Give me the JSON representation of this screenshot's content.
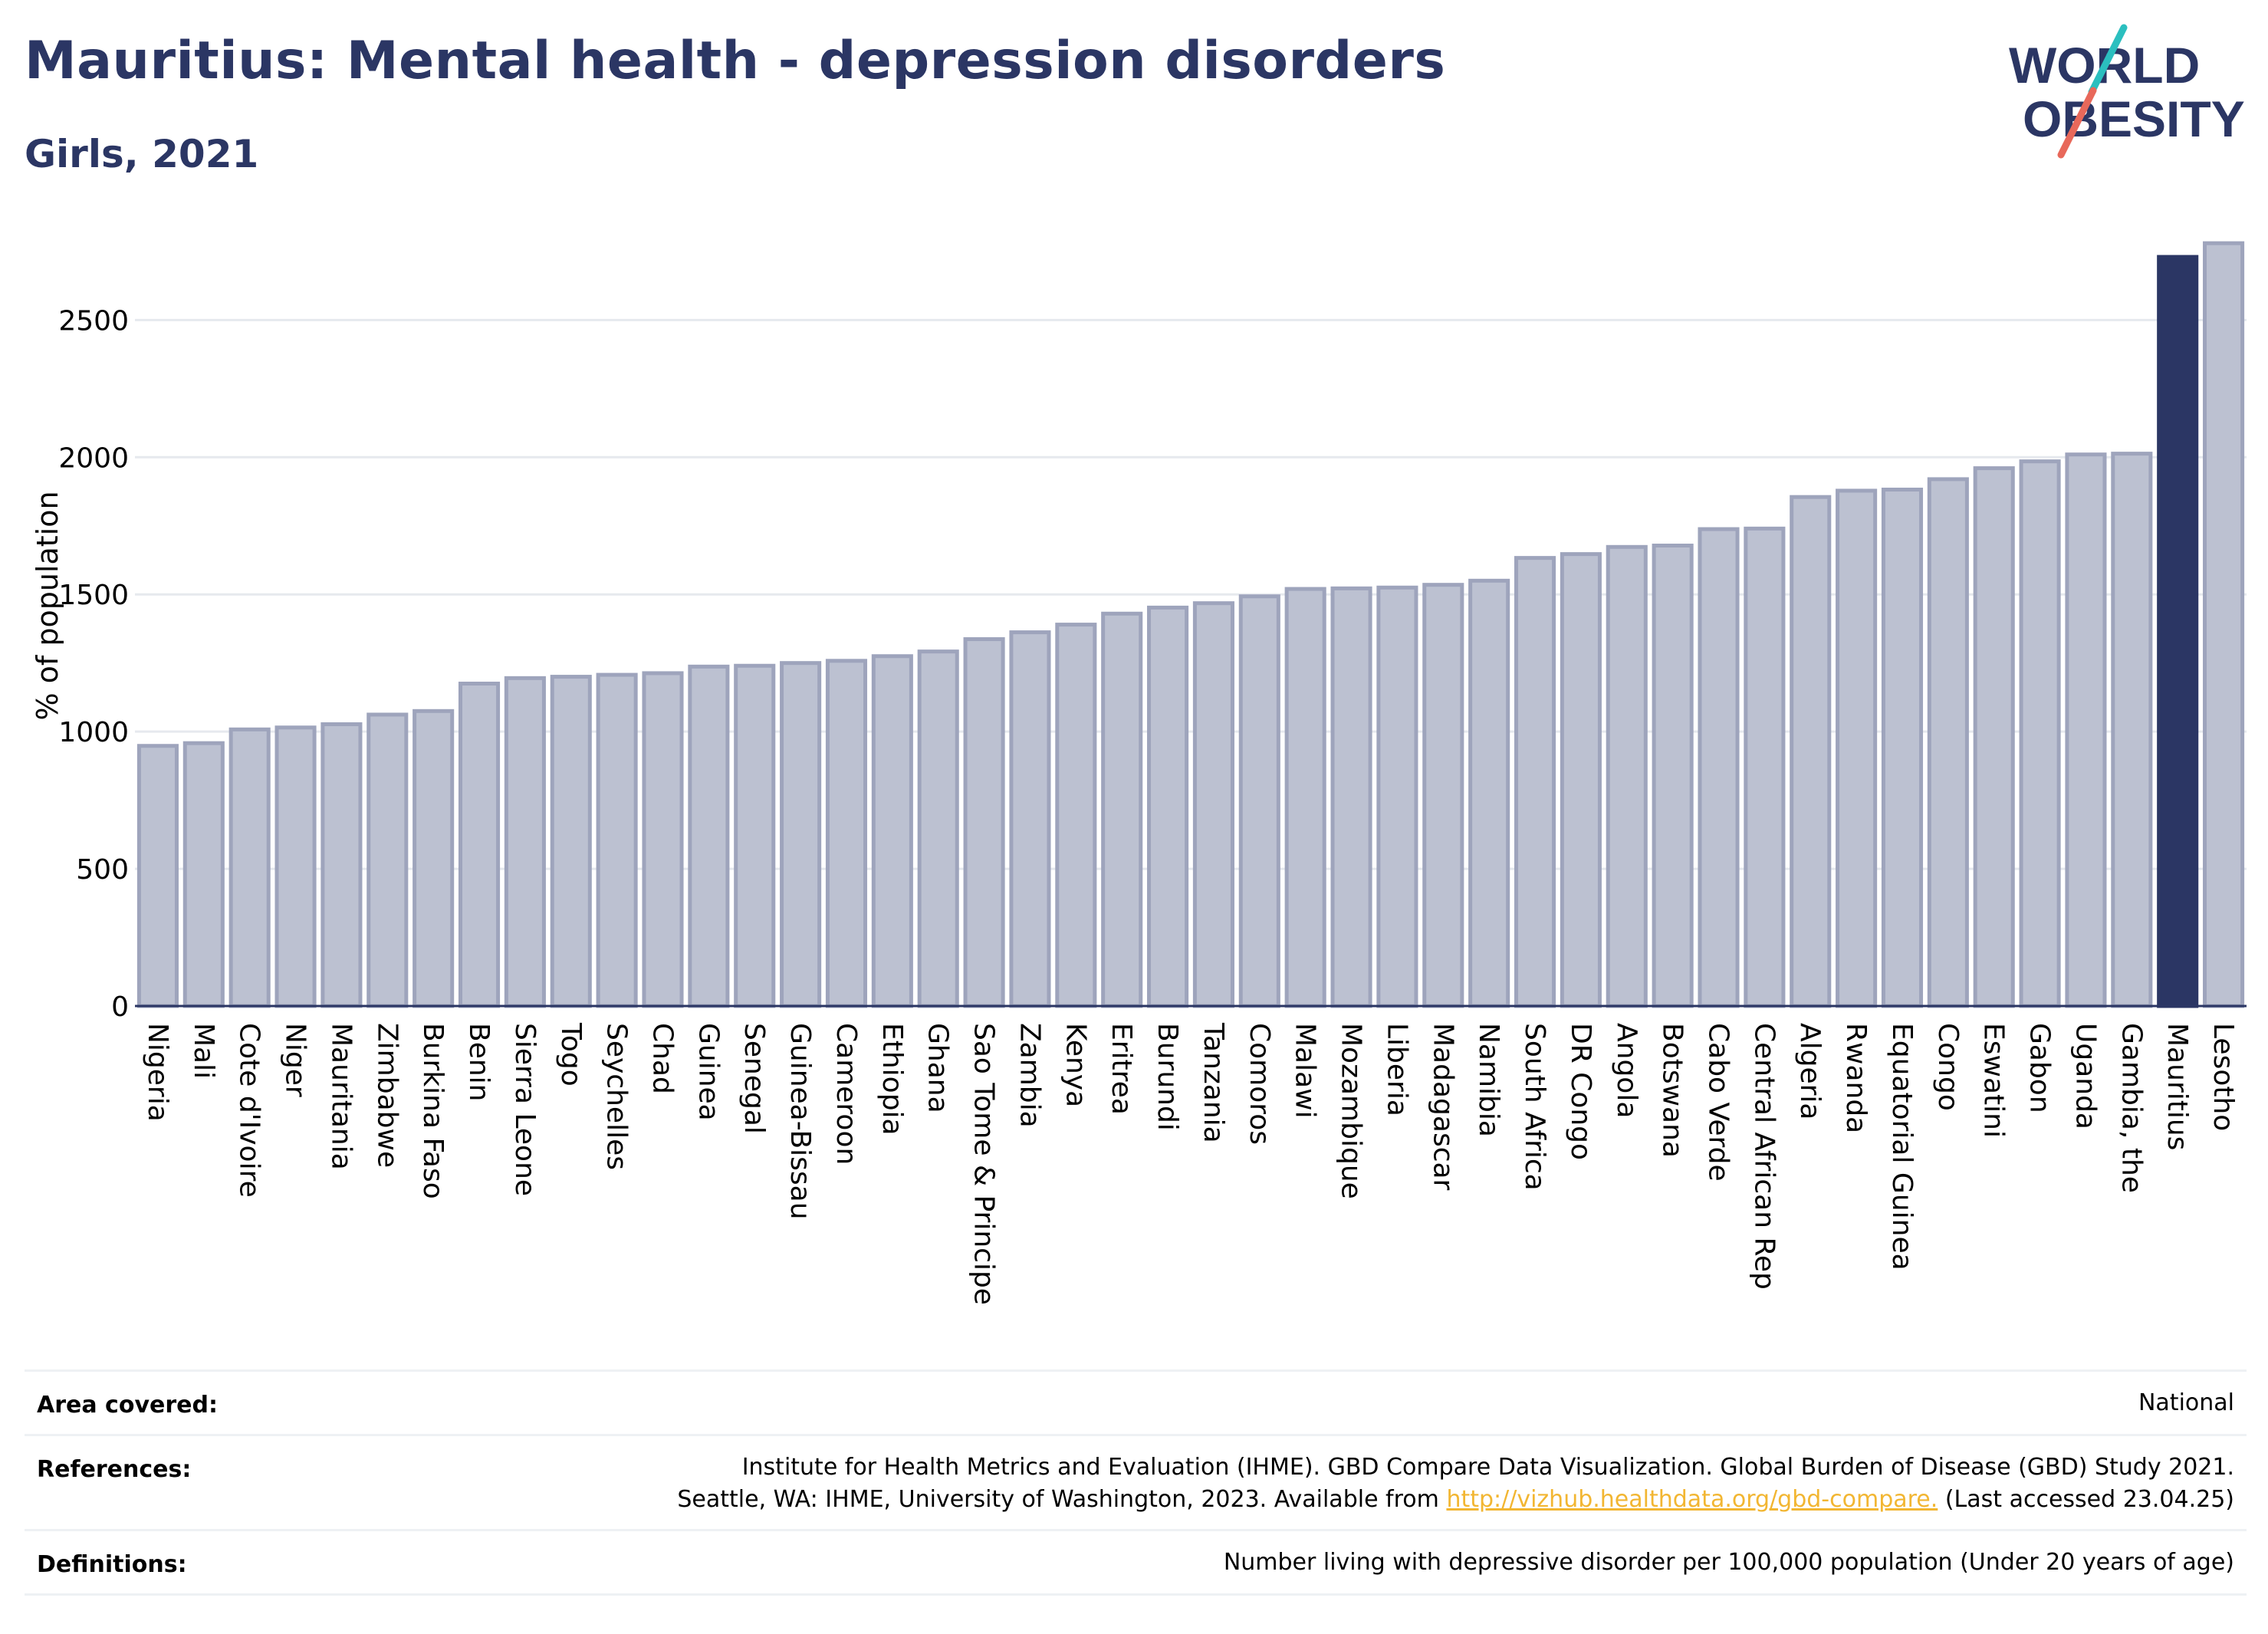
{
  "header": {
    "title": "Mauritius: Mental health - depression disorders",
    "subtitle": "Girls, 2021",
    "logo_text_line1": "WORLD",
    "logo_text_line2": "OBESITY"
  },
  "colors": {
    "title": "#2b3664",
    "bar_default": "#bcc1d1",
    "bar_default_stroke": "#9ea4bc",
    "bar_highlight": "#2b3664",
    "grid": "#e6e9ee",
    "axis": "#2b3664",
    "link": "#f2b632",
    "logo_teal": "#2bbfbf",
    "logo_red": "#e8685a"
  },
  "chart_data": {
    "type": "bar",
    "ylabel": "% of population",
    "xlabel": "",
    "ylim": [
      0,
      2800
    ],
    "yticks": [
      0,
      500,
      1000,
      1500,
      2000,
      2500
    ],
    "highlight": "Mauritius",
    "grid": "horizontal",
    "categories": [
      "Nigeria",
      "Mali",
      "Cote d'Ivoire",
      "Niger",
      "Mauritania",
      "Zimbabwe",
      "Burkina Faso",
      "Benin",
      "Sierra Leone",
      "Togo",
      "Seychelles",
      "Chad",
      "Guinea",
      "Senegal",
      "Guinea-Bissau",
      "Cameroon",
      "Ethiopia",
      "Ghana",
      "Sao Tome & Principe",
      "Zambia",
      "Kenya",
      "Eritrea",
      "Burundi",
      "Tanzania",
      "Comoros",
      "Malawi",
      "Mozambique",
      "Liberia",
      "Madagascar",
      "Namibia",
      "South Africa",
      "DR Congo",
      "Angola",
      "Botswana",
      "Cabo Verde",
      "Central African Rep",
      "Algeria",
      "Rwanda",
      "Equatorial Guinea",
      "Congo",
      "Eswatini",
      "Gabon",
      "Uganda",
      "Gambia, the",
      "Mauritius",
      "Lesotho"
    ],
    "values": [
      948,
      958,
      1008,
      1015,
      1027,
      1062,
      1075,
      1175,
      1195,
      1200,
      1207,
      1213,
      1237,
      1240,
      1250,
      1258,
      1275,
      1292,
      1337,
      1362,
      1390,
      1430,
      1452,
      1468,
      1493,
      1520,
      1522,
      1525,
      1535,
      1550,
      1633,
      1647,
      1673,
      1678,
      1738,
      1740,
      1855,
      1878,
      1882,
      1920,
      1960,
      1985,
      2010,
      2013,
      2730,
      2780
    ]
  },
  "footer": {
    "area_label": "Area covered:",
    "area_value": "National",
    "references_label": "References:",
    "references_line1": "Institute for Health Metrics and Evaluation (IHME). GBD Compare Data Visualization. Global Burden of Disease (GBD) Study 2021.",
    "references_line2_pre": "Seattle, WA: IHME, University of Washington, 2023. Available from",
    "references_link": "http://vizhub.healthdata.org/gbd-compare.",
    "references_line2_post": "(Last accessed 23.04.25)",
    "definitions_label": "Definitions:",
    "definitions_value": "Number living with depressive disorder per 100,000 population (Under 20 years of age)"
  }
}
